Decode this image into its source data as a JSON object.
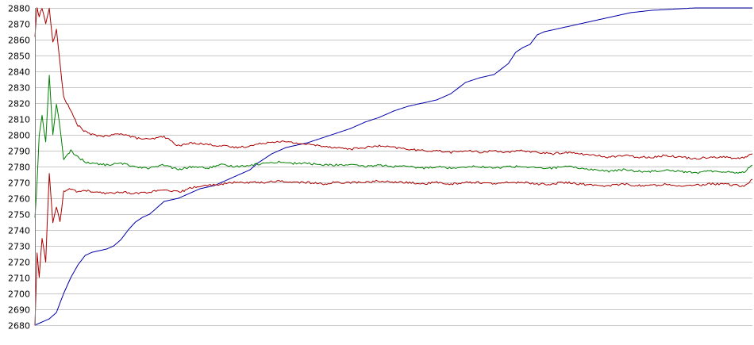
{
  "chart_data": {
    "type": "line",
    "title": "",
    "xlabel": "",
    "ylabel": "",
    "ylim": [
      2680,
      2880
    ],
    "y_ticks": [
      2680,
      2690,
      2700,
      2710,
      2720,
      2730,
      2740,
      2750,
      2760,
      2770,
      2780,
      2790,
      2800,
      2810,
      2820,
      2830,
      2840,
      2850,
      2860,
      2870,
      2880
    ],
    "x_ticks_shown": false,
    "grid": true,
    "legend": "none",
    "x_range": [
      0,
      100
    ],
    "series": [
      {
        "color": "#0000aa",
        "x": [
          0,
          0.5,
          1,
          2,
          3,
          4,
          5,
          6,
          7,
          8,
          9,
          10,
          11,
          12,
          13,
          14,
          15,
          16,
          17,
          18,
          19,
          20,
          21,
          22,
          23,
          24,
          25,
          26,
          27,
          28,
          29,
          30,
          31,
          32,
          33,
          34,
          35,
          36,
          37,
          38,
          40,
          42,
          44,
          46,
          48,
          50,
          52,
          54,
          56,
          58,
          60,
          62,
          64,
          66,
          67,
          68,
          69,
          70,
          71,
          72,
          74,
          76,
          77,
          78,
          79,
          80,
          81,
          82,
          83,
          84,
          85,
          86,
          88,
          90,
          92,
          94,
          96,
          98,
          100
        ],
        "y": [
          2680,
          2681,
          2682,
          2684,
          2688,
          2700,
          2710,
          2718,
          2724,
          2726,
          2727,
          2728,
          2730,
          2734,
          2740,
          2745,
          2748,
          2750,
          2754,
          2758,
          2759,
          2760,
          2762,
          2764,
          2766,
          2767,
          2768,
          2770,
          2772,
          2774,
          2776,
          2778,
          2782,
          2785,
          2788,
          2790,
          2792,
          2793,
          2794,
          2795,
          2798,
          2801,
          2804,
          2808,
          2811,
          2815,
          2818,
          2820,
          2822,
          2826,
          2833,
          2836,
          2838,
          2845,
          2852,
          2855,
          2857,
          2863,
          2865,
          2866,
          2868,
          2870,
          2871,
          2872,
          2873,
          2874,
          2875,
          2876,
          2877,
          2877.5,
          2878,
          2878.5,
          2879,
          2879.5,
          2880,
          2880,
          2880,
          2880,
          2880
        ]
      },
      {
        "color": "#aa0000",
        "x": [
          0,
          0.3,
          0.6,
          1,
          1.5,
          2,
          2.5,
          3,
          3.5,
          4,
          5,
          6,
          7,
          8,
          10,
          12,
          14,
          16,
          18,
          20,
          21,
          22,
          24,
          26,
          28,
          30,
          32,
          34,
          36,
          38,
          40,
          42,
          44,
          46,
          48,
          50,
          52,
          54,
          56,
          58,
          60,
          62,
          64,
          66,
          68,
          70,
          72,
          74,
          76,
          78,
          80,
          82,
          84,
          86,
          88,
          90,
          92,
          94,
          96,
          98,
          99,
          100
        ],
        "y": [
          2862,
          2880,
          2875,
          2880,
          2870,
          2880,
          2858,
          2866,
          2845,
          2824,
          2815,
          2806,
          2802,
          2800,
          2799,
          2801,
          2798,
          2797,
          2799,
          2793,
          2794,
          2795,
          2794,
          2793,
          2792,
          2793,
          2795,
          2796,
          2795,
          2794,
          2793,
          2792,
          2791,
          2792,
          2793,
          2792,
          2791,
          2790,
          2790,
          2789,
          2790,
          2789,
          2790,
          2789,
          2790,
          2789,
          2788,
          2789,
          2788,
          2787,
          2786,
          2787,
          2786,
          2786,
          2787,
          2786,
          2785,
          2786,
          2786,
          2785,
          2786,
          2788
        ]
      },
      {
        "color": "#008000",
        "x": [
          0,
          0.3,
          0.6,
          1,
          1.5,
          2,
          2.5,
          3,
          3.5,
          4,
          5,
          6,
          7,
          8,
          10,
          12,
          14,
          16,
          18,
          20,
          21,
          22,
          24,
          26,
          28,
          30,
          32,
          34,
          36,
          38,
          40,
          42,
          44,
          46,
          48,
          50,
          52,
          54,
          56,
          58,
          60,
          62,
          64,
          66,
          68,
          70,
          72,
          74,
          76,
          78,
          80,
          82,
          84,
          86,
          88,
          90,
          92,
          94,
          96,
          98,
          99,
          100
        ],
        "y": [
          2748,
          2770,
          2800,
          2812,
          2795,
          2838,
          2800,
          2820,
          2805,
          2784,
          2790,
          2786,
          2783,
          2782,
          2781,
          2782,
          2780,
          2779,
          2781,
          2778,
          2779,
          2780,
          2779,
          2781,
          2780,
          2781,
          2782,
          2783,
          2782,
          2782,
          2781,
          2781,
          2781,
          2780,
          2781,
          2780,
          2780,
          2779,
          2780,
          2779,
          2780,
          2780,
          2779,
          2780,
          2780,
          2779,
          2779,
          2780,
          2779,
          2778,
          2777,
          2778,
          2777,
          2777,
          2778,
          2777,
          2776,
          2777,
          2777,
          2776,
          2777,
          2781
        ]
      },
      {
        "color": "#aa0000",
        "x": [
          0,
          0.3,
          0.6,
          1,
          1.5,
          2,
          2.5,
          3,
          3.5,
          4,
          5,
          6,
          7,
          8,
          10,
          12,
          14,
          16,
          18,
          20,
          21,
          22,
          24,
          26,
          28,
          30,
          32,
          34,
          36,
          38,
          40,
          42,
          44,
          46,
          48,
          50,
          52,
          54,
          56,
          58,
          60,
          62,
          64,
          66,
          68,
          70,
          72,
          74,
          76,
          78,
          80,
          82,
          84,
          86,
          88,
          90,
          92,
          94,
          96,
          98,
          99,
          100
        ],
        "y": [
          2680,
          2725,
          2710,
          2735,
          2720,
          2775,
          2745,
          2755,
          2745,
          2764,
          2766,
          2764,
          2765,
          2764,
          2763,
          2764,
          2763,
          2764,
          2765,
          2764,
          2765,
          2767,
          2768,
          2769,
          2770,
          2770,
          2770,
          2771,
          2770,
          2770,
          2769,
          2770,
          2770,
          2770,
          2771,
          2770,
          2770,
          2769,
          2770,
          2769,
          2770,
          2770,
          2769,
          2770,
          2770,
          2769,
          2769,
          2770,
          2769,
          2768,
          2768,
          2769,
          2768,
          2768,
          2769,
          2768,
          2768,
          2769,
          2769,
          2768,
          2768,
          2772
        ]
      }
    ]
  }
}
